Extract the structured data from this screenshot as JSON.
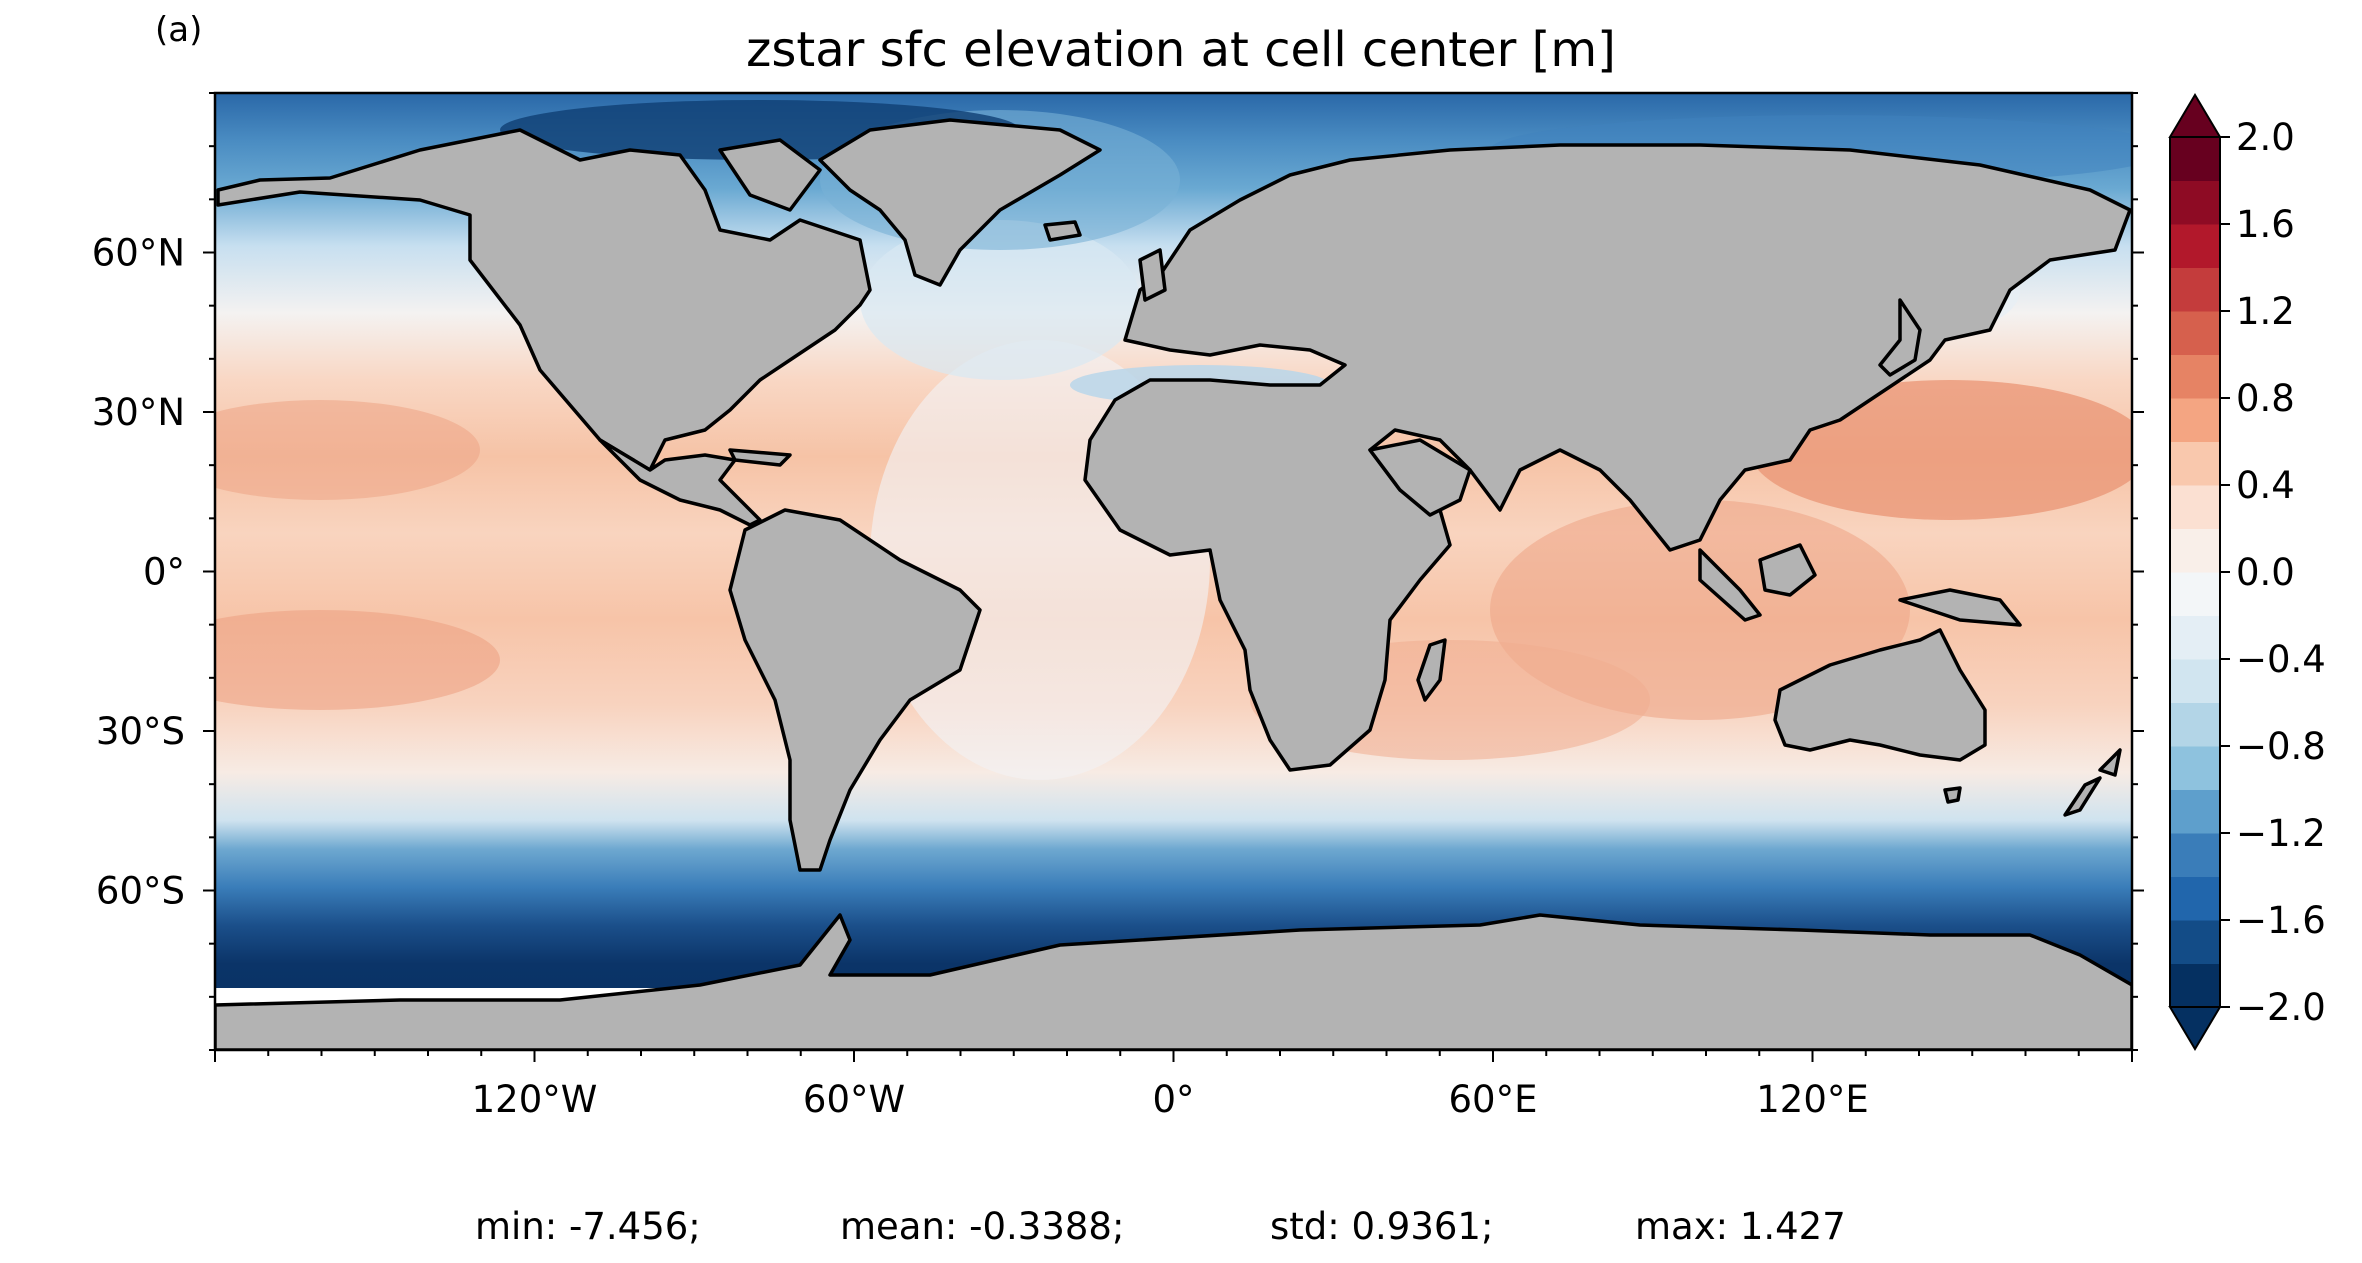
{
  "panel_label": "(a)",
  "title": "zstar sfc elevation at cell center [m]",
  "map": {
    "projection": "PlateCarree",
    "land_color": "#b3b3b3",
    "coastline_color": "#000000",
    "colormap": "RdBu_r",
    "lon_ticks": [
      "120°W",
      "60°W",
      "0°",
      "60°E",
      "120°E"
    ],
    "lat_ticks": [
      "60°N",
      "30°N",
      "0°",
      "30°S",
      "60°S"
    ]
  },
  "colorbar": {
    "extend": "both",
    "range": [
      -2.0,
      2.0
    ],
    "tick_labels": [
      "2.0",
      "1.6",
      "1.2",
      "0.8",
      "0.4",
      "0.0",
      "−0.4",
      "−0.8",
      "−1.2",
      "−1.6",
      "−2.0"
    ],
    "colors": [
      "#053061",
      "#134c87",
      "#2166ac",
      "#3a7db9",
      "#5e9fcc",
      "#8ec2de",
      "#b3d5e7",
      "#d1e5f0",
      "#e4eef5",
      "#f3f6f8",
      "#f9efe9",
      "#fbe0d2",
      "#f9c8ad",
      "#f4a582",
      "#e68364",
      "#d6604d",
      "#c43c3c",
      "#b2182b",
      "#8e0b24",
      "#67001f"
    ]
  },
  "stats": {
    "min": "min: -7.456;",
    "mean": "mean: -0.3388;",
    "std": "std: 0.9361;",
    "max": "max: 1.427"
  }
}
